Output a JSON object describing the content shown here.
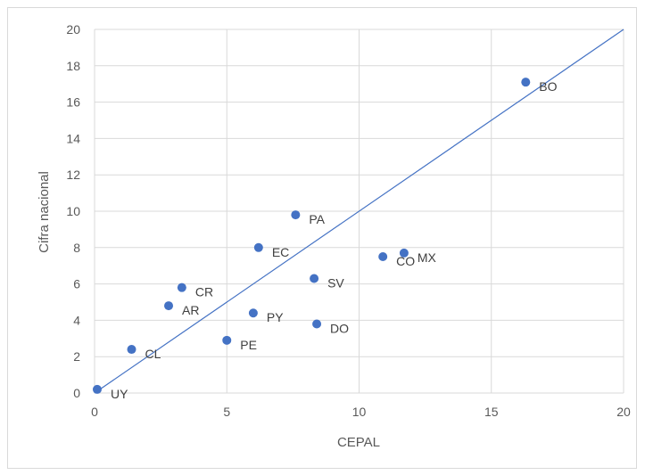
{
  "chart_data": {
    "type": "scatter",
    "title": "",
    "xlabel": "CEPAL",
    "ylabel": "Cifra nacional",
    "xlim": [
      0,
      20
    ],
    "ylim": [
      0,
      20
    ],
    "x_ticks": [
      0,
      5,
      10,
      15,
      20
    ],
    "y_ticks": [
      0,
      2,
      4,
      6,
      8,
      10,
      12,
      14,
      16,
      18,
      20
    ],
    "grid": true,
    "legend": "none",
    "marker_color": "#4472c4",
    "line_color": "#4472c4",
    "reference_line": {
      "from": [
        0,
        0
      ],
      "to": [
        20,
        20
      ]
    },
    "points": [
      {
        "label": "BO",
        "x": 16.3,
        "y": 17.1
      },
      {
        "label": "PA",
        "x": 7.6,
        "y": 9.8
      },
      {
        "label": "EC",
        "x": 6.2,
        "y": 8.0
      },
      {
        "label": "MX",
        "x": 11.7,
        "y": 7.7
      },
      {
        "label": "CO",
        "x": 10.9,
        "y": 7.5
      },
      {
        "label": "SV",
        "x": 8.3,
        "y": 6.3
      },
      {
        "label": "CR",
        "x": 3.3,
        "y": 5.8
      },
      {
        "label": "AR",
        "x": 2.8,
        "y": 4.8
      },
      {
        "label": "PY",
        "x": 6.0,
        "y": 4.4
      },
      {
        "label": "DO",
        "x": 8.4,
        "y": 3.8
      },
      {
        "label": "PE",
        "x": 5.0,
        "y": 2.9
      },
      {
        "label": "CL",
        "x": 1.4,
        "y": 2.4
      },
      {
        "label": "UY",
        "x": 0.1,
        "y": 0.2
      }
    ]
  }
}
